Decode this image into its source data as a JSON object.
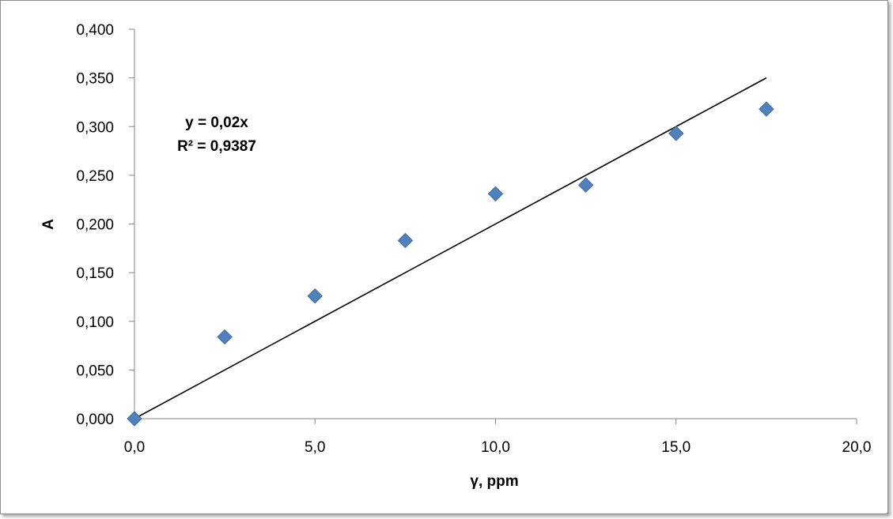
{
  "chart_data": {
    "type": "scatter",
    "title": "",
    "xlabel": "γ, ppm",
    "ylabel": "A",
    "xlim": [
      0,
      20
    ],
    "ylim": [
      0,
      0.4
    ],
    "x_ticks": [
      "0,0",
      "5,0",
      "10,0",
      "15,0",
      "20,0"
    ],
    "y_ticks": [
      "0,000",
      "0,050",
      "0,100",
      "0,150",
      "0,200",
      "0,250",
      "0,300",
      "0,350",
      "0,400"
    ],
    "grid": false,
    "legend": "none",
    "series": [
      {
        "color": "#4f81bd",
        "marker": "diamond",
        "points": [
          {
            "x": 0,
            "y": 0.0
          },
          {
            "x": 2.5,
            "y": 0.084
          },
          {
            "x": 5.0,
            "y": 0.126
          },
          {
            "x": 7.5,
            "y": 0.183
          },
          {
            "x": 10.0,
            "y": 0.231
          },
          {
            "x": 12.5,
            "y": 0.24
          },
          {
            "x": 15.0,
            "y": 0.293
          },
          {
            "x": 17.5,
            "y": 0.318
          }
        ]
      }
    ],
    "trendline": {
      "type": "linear",
      "slope": 0.02,
      "intercept": 0,
      "x_range": [
        0,
        17.5
      ],
      "color": "#000000",
      "equation_label": "y = 0,02x",
      "r2_label": "R² = 0,9387"
    }
  }
}
